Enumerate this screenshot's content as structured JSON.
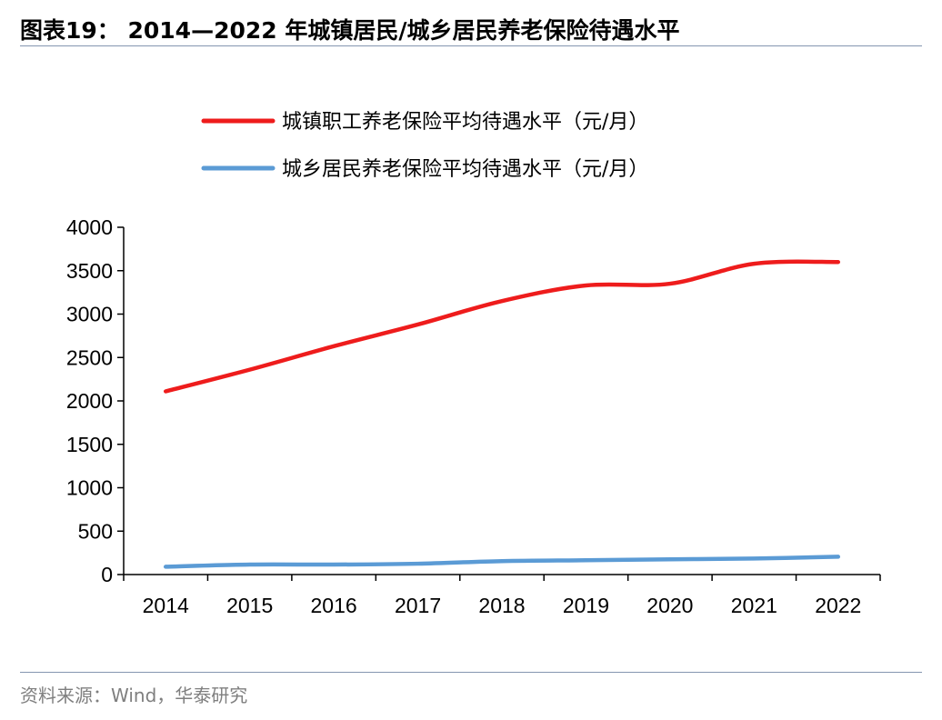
{
  "figure": {
    "title": "图表19： 2014—2022 年城镇居民/城乡居民养老保险待遇水平",
    "source": "资料来源：Wind，华泰研究"
  },
  "chart_data": {
    "type": "line",
    "title": "",
    "xlabel": "",
    "ylabel": "",
    "x": [
      "2014",
      "2015",
      "2016",
      "2017",
      "2018",
      "2019",
      "2020",
      "2021",
      "2022"
    ],
    "ylim": [
      0,
      4000
    ],
    "yticks": [
      0,
      500,
      1000,
      1500,
      2000,
      2500,
      3000,
      3500,
      4000
    ],
    "grid": false,
    "legend_position": "top",
    "smooth": true,
    "series": [
      {
        "name": "城镇职工养老保险平均待遇水平（元/月）",
        "color": "#ee1c1c",
        "values": [
          2110,
          2360,
          2630,
          2880,
          3150,
          3330,
          3350,
          3580,
          3600
        ]
      },
      {
        "name": "城乡居民养老保险平均待遇水平（元/月）",
        "color": "#5b9bd5",
        "values": [
          90,
          115,
          115,
          125,
          155,
          165,
          175,
          185,
          205
        ]
      }
    ]
  }
}
